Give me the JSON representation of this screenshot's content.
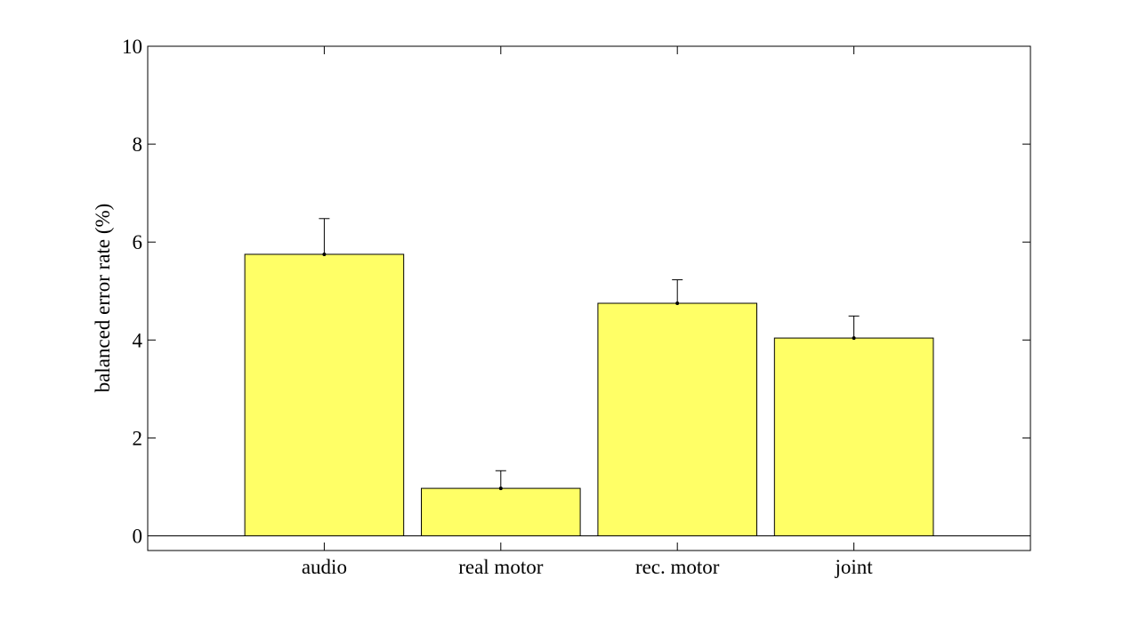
{
  "chart_data": {
    "type": "bar",
    "categories": [
      "audio",
      "real motor",
      "rec. motor",
      "joint"
    ],
    "values": [
      5.75,
      0.97,
      4.75,
      4.04
    ],
    "error_upper": [
      6.48,
      1.33,
      5.23,
      4.49
    ],
    "xlabel": "",
    "ylabel": "balanced error rate (%)",
    "ylim": [
      -0.3,
      10
    ],
    "xlim": [
      0.0,
      5.0
    ],
    "yticks": [
      0,
      2,
      4,
      6,
      8,
      10
    ],
    "grid": false,
    "bar_color": "#ffff66",
    "edge_color": "#000000"
  }
}
